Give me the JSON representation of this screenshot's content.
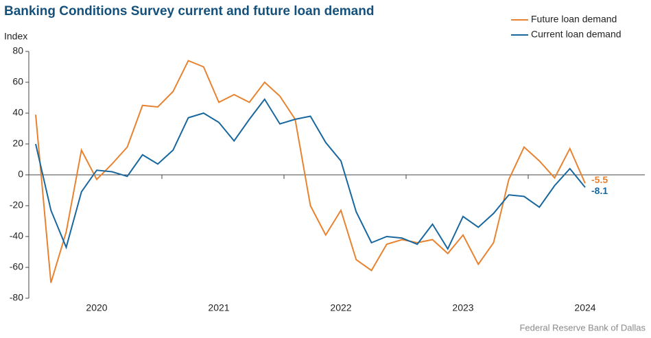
{
  "chart_data": {
    "type": "line",
    "title": "Banking Conditions Survey current and future loan demand",
    "y_axis_label": "Index",
    "source": "Federal Reserve Bank of Dallas",
    "categories": [
      null,
      null,
      null,
      null,
      "2020",
      null,
      null,
      null,
      null,
      null,
      null,
      null,
      "2021",
      null,
      null,
      null,
      null,
      null,
      null,
      null,
      "2022",
      null,
      null,
      null,
      null,
      null,
      null,
      null,
      "2023",
      null,
      null,
      null,
      null,
      null,
      null,
      null,
      "2024"
    ],
    "series": [
      {
        "name": "Future loan demand",
        "color": "#e8822f",
        "values": [
          39,
          -70,
          -37,
          16,
          -3,
          7,
          18,
          45,
          44,
          54,
          74,
          70,
          47,
          52,
          47,
          60,
          51,
          36,
          -20,
          -39,
          -23,
          -55,
          -62,
          -45,
          -42,
          -44,
          -42,
          -51,
          -39,
          -58,
          -44,
          -3,
          18,
          9,
          -2,
          17,
          -5.5
        ]
      },
      {
        "name": "Current loan demand",
        "color": "#17679e",
        "values": [
          20,
          -23,
          -47,
          -11,
          3,
          2,
          -1,
          13,
          7,
          16,
          37,
          40,
          34,
          22,
          36,
          49,
          33,
          36,
          38,
          21,
          9,
          -24,
          -44,
          -40,
          -41,
          -45,
          -32,
          -48,
          -27,
          -34,
          -25,
          -13,
          -14,
          -21,
          -7,
          4,
          -8.1
        ]
      }
    ],
    "ylim": [
      -80,
      80
    ],
    "yticks": [
      -80,
      -60,
      -40,
      -20,
      0,
      20,
      40,
      60,
      80
    ],
    "legend": "top-right"
  }
}
